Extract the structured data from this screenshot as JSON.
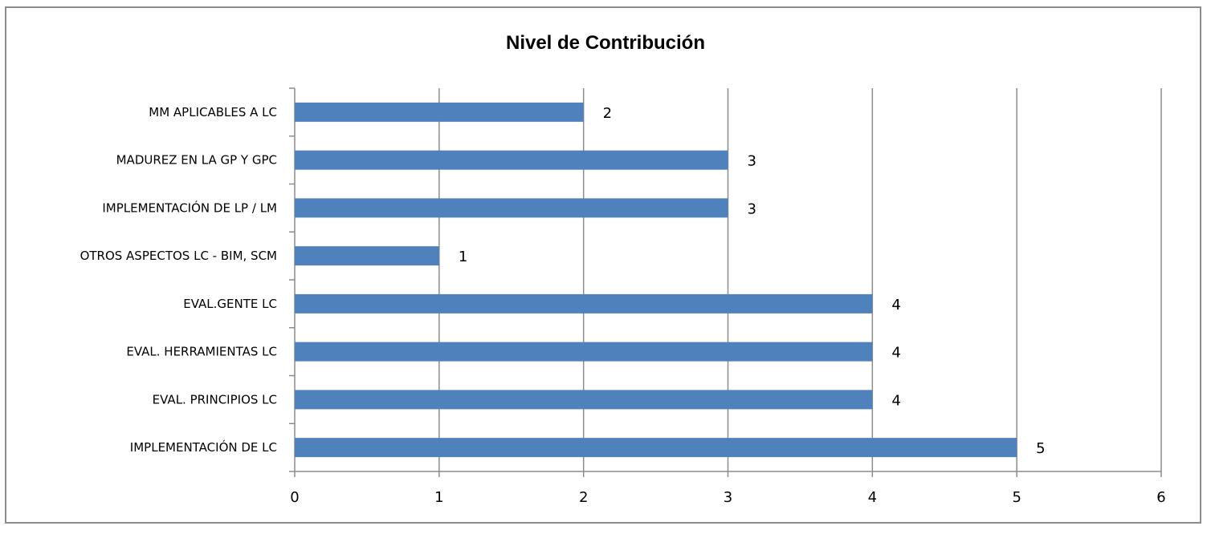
{
  "chart_data": {
    "type": "bar",
    "orientation": "horizontal",
    "title": "Nivel de Contribución",
    "categories": [
      "MM APLICABLES A LC",
      "MADUREZ EN LA GP Y GPC",
      "IMPLEMENTACIÓN DE LP / LM",
      "OTROS ASPECTOS LC - BIM, SCM",
      "EVAL.GENTE LC",
      "EVAL. HERRAMIENTAS LC",
      "EVAL. PRINCIPIOS LC",
      "IMPLEMENTACIÓN DE LC"
    ],
    "values": [
      2,
      3,
      3,
      1,
      4,
      4,
      4,
      5
    ],
    "xlim": [
      0,
      6
    ],
    "xticks": [
      "0",
      "1",
      "2",
      "3",
      "4",
      "5",
      "6"
    ],
    "grid": true,
    "legend": "none",
    "bar_color": "#4f81bd",
    "grid_color": "#8c8c8c"
  }
}
